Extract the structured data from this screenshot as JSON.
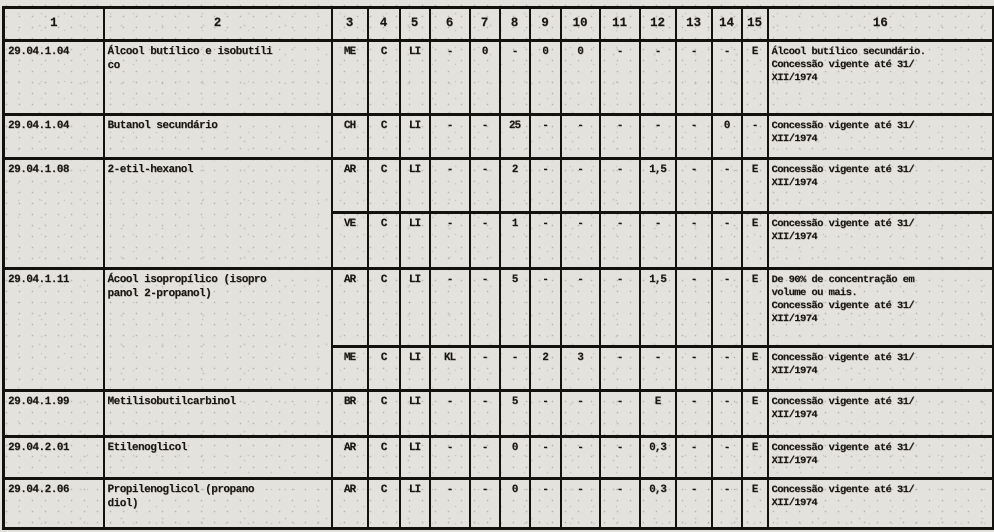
{
  "colors": {
    "paper": "#e3e2dc",
    "ink": "#1a1712",
    "border": "#14120e"
  },
  "table": {
    "headers": [
      "1",
      "2",
      "3",
      "4",
      "5",
      "6",
      "7",
      "8",
      "9",
      "10",
      "11",
      "12",
      "13",
      "14",
      "15",
      "16"
    ],
    "rows": [
      {
        "code": "29.04.1.04",
        "name": "Álcool butílico e isobutíli\nco",
        "subrows": [
          {
            "cols": [
              "ME",
              "C",
              "LI",
              "-",
              "0",
              "-",
              "0",
              "0",
              "-",
              "-",
              "-",
              "-",
              "E"
            ],
            "obs": "Álcool butílico secundário.\nConcessão vigente até 31/\nXII/1974"
          }
        ]
      },
      {
        "code": "29.04.1.04",
        "name": "Butanol secundário",
        "subrows": [
          {
            "cols": [
              "CH",
              "C",
              "LI",
              "-",
              "-",
              "25",
              "-",
              "-",
              "-",
              "-",
              "-",
              "0",
              "-"
            ],
            "obs": "Concessão vigente até 31/\nXII/1974"
          }
        ]
      },
      {
        "code": "29.04.1.08",
        "name": "2-etil-hexanol",
        "subrows": [
          {
            "cols": [
              "AR",
              "C",
              "LI",
              "-",
              "-",
              "2",
              "-",
              "-",
              "-",
              "1,5",
              "-",
              "-",
              "E"
            ],
            "obs": "Concessão vigente até 31/\nXII/1974"
          },
          {
            "cols": [
              "VE",
              "C",
              "LI",
              "-",
              "-",
              "1",
              "-",
              "-",
              "-",
              "-",
              "-",
              "-",
              "E"
            ],
            "obs": "Concessão vigente até 31/\nXII/1974"
          }
        ]
      },
      {
        "code": "29.04.1.11",
        "name": "Ácool isopropílico (isopro\npanol 2-propanol)",
        "subrows": [
          {
            "cols": [
              "AR",
              "C",
              "LI",
              "-",
              "-",
              "5",
              "-",
              "-",
              "-",
              "1,5",
              "-",
              "-",
              "E"
            ],
            "obs": "De 90% de concentração em\nvolume ou mais.\nConcessão vigente até 31/\nXII/1974"
          },
          {
            "cols": [
              "ME",
              "C",
              "LI",
              "KL",
              "-",
              "-",
              "2",
              "3",
              "-",
              "-",
              "-",
              "-",
              "E"
            ],
            "obs": "Concessão vigente até 31/\nXII/1974"
          }
        ]
      },
      {
        "code": "29.04.1.99",
        "name": "Metilisobutilcarbinol",
        "subrows": [
          {
            "cols": [
              "BR",
              "C",
              "LI",
              "-",
              "-",
              "5",
              "-",
              "-",
              "-",
              "E",
              "-",
              "-",
              "E"
            ],
            "obs": "Concessão vigente até 31/\nXII/1974"
          }
        ]
      },
      {
        "code": "29.04.2.01",
        "name": "Etilenoglicol",
        "subrows": [
          {
            "cols": [
              "AR",
              "C",
              "LI",
              "-",
              "-",
              "0",
              "-",
              "-",
              "-",
              "0,3",
              "-",
              "-",
              "E"
            ],
            "obs": "Concessão vigente até 31/\nXII/1974"
          }
        ]
      },
      {
        "code": "29.04.2.06",
        "name": "Propilenoglicol (propano\ndiol)",
        "subrows": [
          {
            "cols": [
              "AR",
              "C",
              "LI",
              "-",
              "-",
              "0",
              "-",
              "-",
              "-",
              "0,3",
              "-",
              "-",
              "E"
            ],
            "obs": "Concessão vigente até 31/\nXII/1974"
          }
        ]
      }
    ]
  }
}
